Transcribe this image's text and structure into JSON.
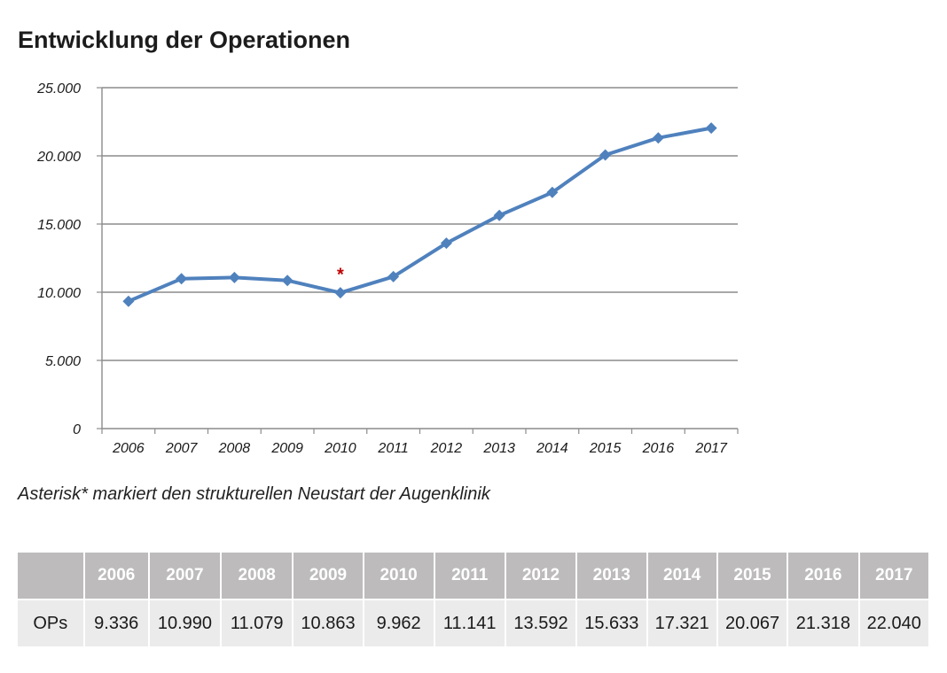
{
  "title": "Entwicklung der Operationen",
  "caption": "Asterisk* markiert den strukturellen Neustart der Augenklinik",
  "colors": {
    "line": "#4f81bd",
    "grid": "#8c8c8c",
    "asterisk": "#c00000",
    "header_bg": "#bdbbbb",
    "row_bg": "#ebebeb"
  },
  "chart_data": {
    "type": "line",
    "title": "Entwicklung der Operationen",
    "xlabel": "",
    "ylabel": "",
    "categories": [
      "2006",
      "2007",
      "2008",
      "2009",
      "2010",
      "2011",
      "2012",
      "2013",
      "2014",
      "2015",
      "2016",
      "2017"
    ],
    "values": [
      9336,
      10990,
      11079,
      10863,
      9962,
      11141,
      13592,
      15633,
      17321,
      20067,
      21318,
      22040
    ],
    "ylim": [
      0,
      25000
    ],
    "yticks": [
      0,
      5000,
      10000,
      15000,
      20000,
      25000
    ],
    "ytick_labels": [
      "0",
      "5.000",
      "10.000",
      "15.000",
      "20.000",
      "25.000"
    ],
    "grid": true,
    "annotation": {
      "text": "*",
      "category": "2010"
    }
  },
  "table": {
    "corner": "",
    "row_label": "OPs",
    "years": [
      "2006",
      "2007",
      "2008",
      "2009",
      "2010",
      "2011",
      "2012",
      "2013",
      "2014",
      "2015",
      "2016",
      "2017"
    ],
    "values": [
      "9.336",
      "10.990",
      "11.079",
      "10.863",
      "9.962",
      "11.141",
      "13.592",
      "15.633",
      "17.321",
      "20.067",
      "21.318",
      "22.040"
    ]
  }
}
